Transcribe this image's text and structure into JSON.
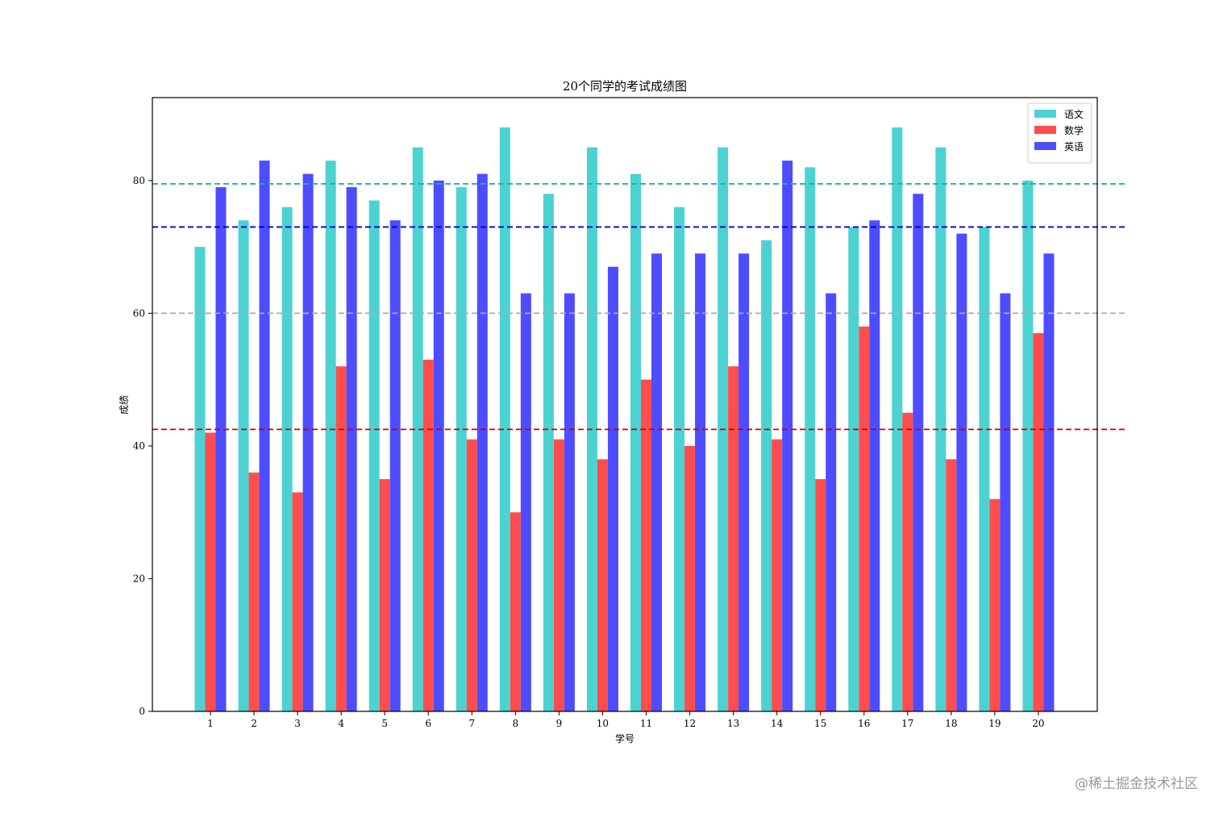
{
  "chart_data": {
    "type": "bar",
    "title": "20个同学的考试成绩图",
    "xlabel": "学号",
    "ylabel": "成绩",
    "categories": [
      "1",
      "2",
      "3",
      "4",
      "5",
      "6",
      "7",
      "8",
      "9",
      "10",
      "11",
      "12",
      "13",
      "14",
      "15",
      "16",
      "17",
      "18",
      "19",
      "20"
    ],
    "series": [
      {
        "name": "语文",
        "color": "#4dd2d2",
        "values": [
          70,
          74,
          76,
          83,
          77,
          85,
          79,
          88,
          78,
          85,
          81,
          76,
          85,
          71,
          82,
          73,
          88,
          85,
          73,
          80
        ]
      },
      {
        "name": "数学",
        "color": "#ff4d4d",
        "values": [
          42,
          36,
          33,
          52,
          35,
          53,
          41,
          30,
          41,
          38,
          50,
          40,
          52,
          41,
          35,
          58,
          45,
          38,
          32,
          57
        ]
      },
      {
        "name": "英语",
        "color": "#4d4dff",
        "values": [
          79,
          83,
          81,
          79,
          74,
          80,
          81,
          63,
          63,
          67,
          69,
          69,
          69,
          83,
          63,
          74,
          78,
          72,
          63,
          69
        ]
      }
    ],
    "reference_lines": [
      {
        "value": 79.5,
        "color": "#1ab2b2"
      },
      {
        "value": 73.0,
        "color": "#0000cc"
      },
      {
        "value": 60.0,
        "color": "#aaaaaa"
      },
      {
        "value": 42.5,
        "color": "#cc0000"
      }
    ],
    "y_ticks": [
      0,
      20,
      40,
      60,
      80
    ],
    "ylim": [
      0,
      92.5
    ],
    "grid": false,
    "legend_position": "top-right"
  },
  "watermark": "@稀土掘金技术社区"
}
